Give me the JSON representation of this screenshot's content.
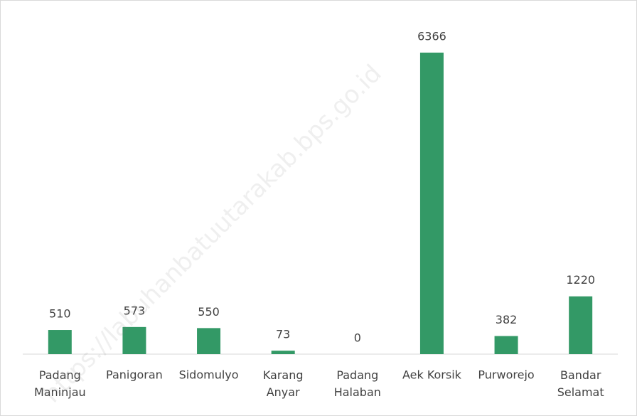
{
  "chart_data": {
    "type": "bar",
    "categories": [
      "Padang Maninjau",
      "Panigoran",
      "Sidomulyo",
      "Karang Anyar",
      "Padang Halaban",
      "Aek Korsik",
      "Purworejo",
      "Bandar Selamat"
    ],
    "values": [
      510,
      573,
      550,
      73,
      0,
      6366,
      382,
      1220
    ],
    "color": "#339966",
    "watermark": "https://labuhanbatuutarakab.bps.go.id"
  }
}
